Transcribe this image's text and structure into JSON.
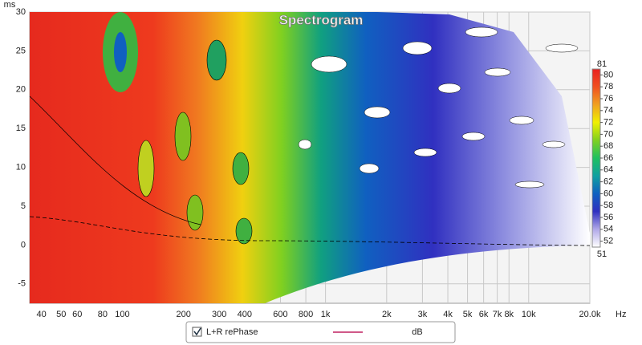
{
  "chart_data": {
    "type": "spectrogram",
    "title": "Spectrogram",
    "y_label": "ms",
    "x_unit": "Hz",
    "xlim": [
      35,
      20000
    ],
    "log_x": true,
    "xticks": [
      40,
      50,
      60,
      80,
      100,
      200,
      300,
      400,
      600,
      800,
      {
        "value": 1000,
        "label": "1k"
      },
      {
        "value": 2000,
        "label": "2k"
      },
      {
        "value": 3000,
        "label": "3k"
      },
      {
        "value": 4000,
        "label": "4k"
      },
      {
        "value": 5000,
        "label": "5k"
      },
      {
        "value": 6000,
        "label": "6k"
      },
      {
        "value": 7000,
        "label": "7k"
      },
      {
        "value": 8000,
        "label": "8k"
      },
      {
        "value": 10000,
        "label": "10k"
      },
      {
        "value": 20000,
        "label": "20.0k"
      }
    ],
    "ylim": [
      -7.5,
      30
    ],
    "yticks": [
      -5,
      0,
      5,
      10,
      15,
      20,
      25,
      30
    ],
    "grid": true,
    "zlim": [
      51,
      81
    ],
    "zticks": [
      52,
      54,
      56,
      58,
      60,
      62,
      64,
      66,
      68,
      70,
      72,
      74,
      76,
      78,
      80
    ],
    "colormap": [
      "#ffffff",
      "#b0a8e8",
      "#3030c0",
      "#1060c0",
      "#10a0a0",
      "#20c060",
      "#80d020",
      "#f0f000",
      "#f0a020",
      "#f05020",
      "#e82020"
    ],
    "legend": {
      "checked": true,
      "name": "L+R rePhase",
      "color": "#c02060",
      "unit": "dB"
    }
  }
}
